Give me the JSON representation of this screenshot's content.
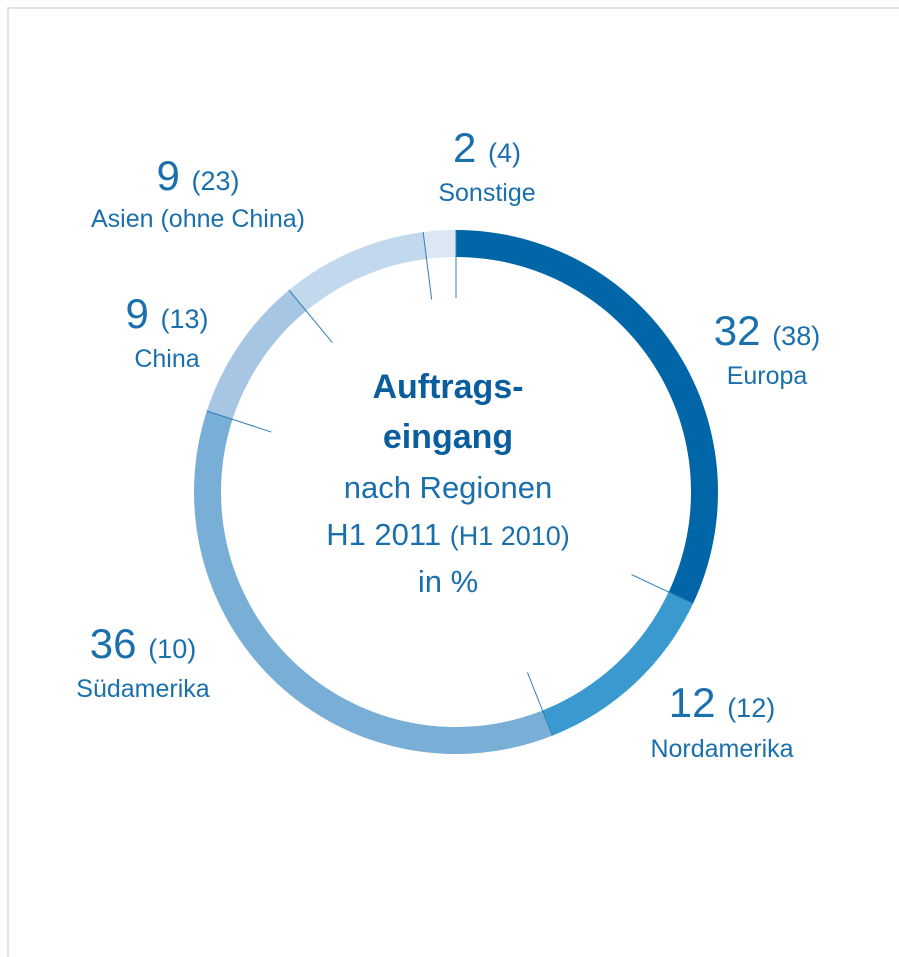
{
  "chart_data": {
    "type": "donut",
    "title": [
      "Auftrags-",
      "eingang"
    ],
    "subtitle": "nach Regionen",
    "period": "H1 2011",
    "previous_period": "(H1 2010)",
    "unit_note": "in %",
    "categories": [
      "Europa",
      "Nordamerika",
      "Südamerika",
      "China",
      "Asien (ohne China)",
      "Sonstige"
    ],
    "values": [
      32,
      12,
      36,
      9,
      9,
      2
    ],
    "previous_values": [
      38,
      12,
      10,
      13,
      23,
      4
    ],
    "previous_labels": [
      "(38)",
      "(12)",
      "(10)",
      "(13)",
      "(23)",
      "(4)"
    ],
    "colors": [
      "#0066a8",
      "#3a9ad0",
      "#79aed6",
      "#a6c6e3",
      "#c2d8ec",
      "#dbe8f4"
    ]
  }
}
